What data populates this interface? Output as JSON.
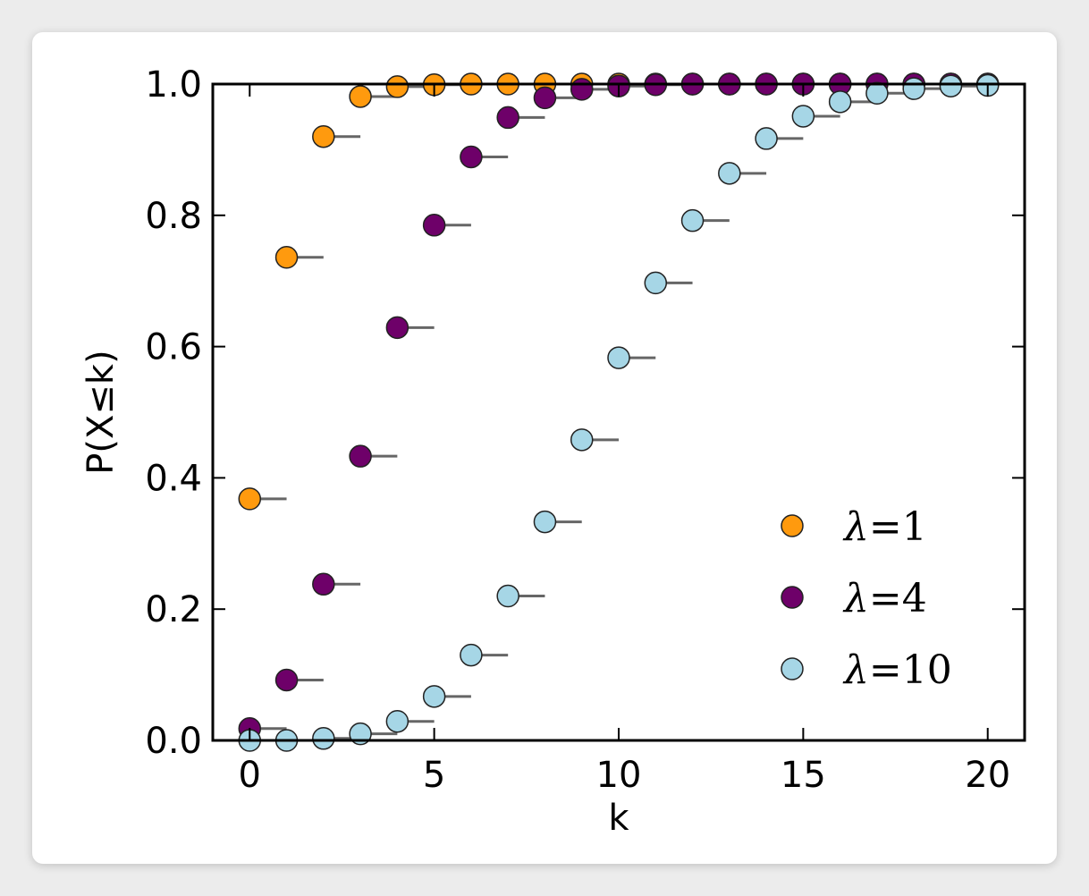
{
  "chart_data": {
    "type": "scatter",
    "xlabel": "k",
    "ylabel": "P(X≤k)",
    "xlim": [
      -1,
      21
    ],
    "ylim": [
      0.0,
      1.0
    ],
    "xticks": [
      "0",
      "5",
      "10",
      "15",
      "20"
    ],
    "yticks": [
      "0.0",
      "0.2",
      "0.4",
      "0.6",
      "0.8",
      "1.0"
    ],
    "grid": false,
    "legend_position": "bottom-right",
    "x": [
      0,
      1,
      2,
      3,
      4,
      5,
      6,
      7,
      8,
      9,
      10,
      11,
      12,
      13,
      14,
      15,
      16,
      17,
      18,
      19,
      20
    ],
    "series": [
      {
        "name": "λ=1",
        "symbol": "λ",
        "eq": "=1",
        "color": "#ff9a0e",
        "values": [
          0.368,
          0.736,
          0.92,
          0.981,
          0.996,
          0.999,
          1.0,
          1.0,
          1.0,
          1.0,
          1.0,
          1.0,
          1.0,
          1.0,
          1.0,
          1.0,
          1.0,
          1.0,
          1.0,
          1.0,
          1.0
        ]
      },
      {
        "name": "λ=4",
        "symbol": "λ",
        "eq": "=4",
        "color": "#6e0069",
        "values": [
          0.018,
          0.092,
          0.238,
          0.433,
          0.629,
          0.785,
          0.889,
          0.949,
          0.979,
          0.992,
          0.997,
          0.999,
          1.0,
          1.0,
          1.0,
          1.0,
          1.0,
          1.0,
          1.0,
          1.0,
          1.0
        ]
      },
      {
        "name": "λ=10",
        "symbol": "λ",
        "eq": "=10",
        "color": "#a6d6e6",
        "values": [
          0.0,
          0.0,
          0.003,
          0.01,
          0.029,
          0.067,
          0.13,
          0.22,
          0.333,
          0.458,
          0.583,
          0.697,
          0.792,
          0.864,
          0.917,
          0.951,
          0.973,
          0.986,
          0.993,
          0.997,
          0.998
        ]
      }
    ]
  }
}
